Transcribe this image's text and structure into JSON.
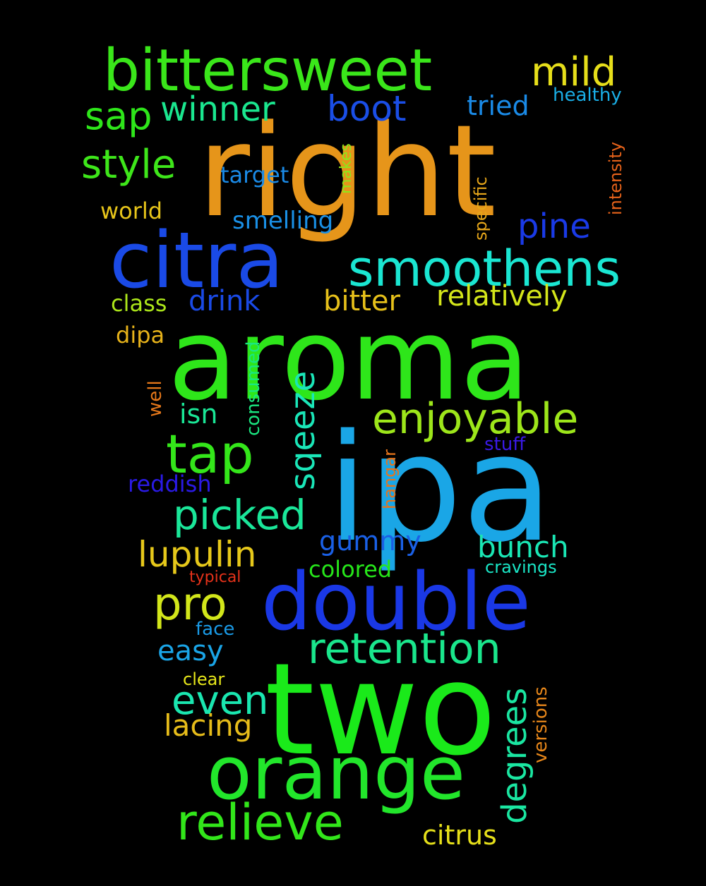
{
  "background": "#000000",
  "words": [
    {
      "text": "right",
      "color": "#e6951a"
    },
    {
      "text": "aroma",
      "color": "#2ee61a"
    },
    {
      "text": "ipa",
      "color": "#1aa6e6"
    },
    {
      "text": "two",
      "color": "#1aea1a"
    },
    {
      "text": "double",
      "color": "#1a38e6"
    },
    {
      "text": "citra",
      "color": "#1a4ae6"
    },
    {
      "text": "orange",
      "color": "#22e62b"
    },
    {
      "text": "bittersweet",
      "color": "#3ae61a"
    },
    {
      "text": "smoothens",
      "color": "#1ae6d2"
    },
    {
      "text": "tap",
      "color": "#34e61a"
    },
    {
      "text": "relieve",
      "color": "#32e61a"
    },
    {
      "text": "enjoyable",
      "color": "#9de61a"
    },
    {
      "text": "pro",
      "color": "#d2e61a"
    },
    {
      "text": "retention",
      "color": "#1ae68c"
    },
    {
      "text": "picked",
      "color": "#1ae699"
    },
    {
      "text": "lupulin",
      "color": "#e6c81a"
    },
    {
      "text": "mild",
      "color": "#e6de1a"
    },
    {
      "text": "sap",
      "color": "#2ee61a"
    },
    {
      "text": "style",
      "color": "#3ee61a"
    },
    {
      "text": "even",
      "color": "#1ae6b0"
    },
    {
      "text": "winner",
      "color": "#1ae68f"
    },
    {
      "text": "boot",
      "color": "#1a4ee6"
    },
    {
      "text": "pine",
      "color": "#1a3ae6"
    },
    {
      "text": "relatively",
      "color": "#d4e61a"
    },
    {
      "text": "sqeeze",
      "color": "#1ae6b8"
    },
    {
      "text": "degrees",
      "color": "#1ae6a1"
    },
    {
      "text": "bunch",
      "color": "#1ae6b4"
    },
    {
      "text": "bitter",
      "color": "#e6c01a"
    },
    {
      "text": "drink",
      "color": "#1a4ae6"
    },
    {
      "text": "lacing",
      "color": "#e6bc1a"
    },
    {
      "text": "citrus",
      "color": "#e6e01a"
    },
    {
      "text": "easy",
      "color": "#1aa4e6"
    },
    {
      "text": "gummy",
      "color": "#1a60e6"
    },
    {
      "text": "tried",
      "color": "#1a8ae6"
    },
    {
      "text": "isn",
      "color": "#1ae696"
    },
    {
      "text": "colored",
      "color": "#26e61a"
    },
    {
      "text": "smelling",
      "color": "#1a90e6"
    },
    {
      "text": "target",
      "color": "#1a8ae6"
    },
    {
      "text": "world",
      "color": "#e6c41a"
    },
    {
      "text": "class",
      "color": "#ace61a"
    },
    {
      "text": "dipa",
      "color": "#e6b21a"
    },
    {
      "text": "reddish",
      "color": "#2a1ae6"
    },
    {
      "text": "consumed",
      "color": "#1ae680"
    },
    {
      "text": "versions",
      "color": "#e6861a"
    },
    {
      "text": "healthy",
      "color": "#1aaee6"
    },
    {
      "text": "intensity",
      "color": "#e6621a"
    },
    {
      "text": "stuff",
      "color": "#3a1ae6"
    },
    {
      "text": "hangar",
      "color": "#e6741a"
    },
    {
      "text": "well",
      "color": "#e6781a"
    },
    {
      "text": "specific",
      "color": "#e6a61a"
    },
    {
      "text": "makes",
      "color": "#8ee61a"
    },
    {
      "text": "cravings",
      "color": "#1ae6c6"
    },
    {
      "text": "face",
      "color": "#1a9ae6"
    },
    {
      "text": "clear",
      "color": "#e6e61a"
    },
    {
      "text": "typical",
      "color": "#e6321a"
    }
  ]
}
